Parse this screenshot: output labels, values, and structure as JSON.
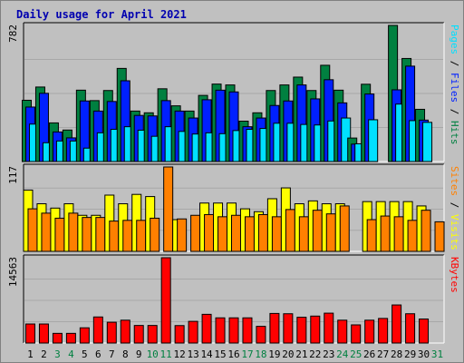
{
  "chart_data": {
    "type": "bar",
    "title": "Daily usage for April 2021",
    "days": [
      "1",
      "2",
      "3",
      "4",
      "5",
      "6",
      "7",
      "8",
      "9",
      "10",
      "11",
      "12",
      "13",
      "14",
      "15",
      "16",
      "17",
      "18",
      "19",
      "20",
      "21",
      "22",
      "23",
      "24",
      "25",
      "26",
      "27",
      "28",
      "29",
      "30",
      "31"
    ],
    "weekend_days": [
      "3",
      "4",
      "10",
      "11",
      "17",
      "18",
      "24",
      "25",
      "31"
    ],
    "colors": {
      "hits": "#008040",
      "files": "#0020ff",
      "pages": "#00e0ff",
      "visits": "#ffff00",
      "sites": "#ff8000",
      "kbytes": "#ff0000",
      "weekday_label": "#000000",
      "weekend_label": "#008040",
      "title": "#0000b0",
      "plot_bg": "#c0c0c0",
      "grid": "#a8a8a8"
    },
    "panels": [
      {
        "name": "hits-files-pages",
        "ymax": 782,
        "ymax_label": "782",
        "right_label": [
          {
            "text": "Pages",
            "color": "#00e0ff"
          },
          {
            "text": " / ",
            "color": "#000000"
          },
          {
            "text": "Files",
            "color": "#0020ff"
          },
          {
            "text": " / ",
            "color": "#000000"
          },
          {
            "text": "Hits",
            "color": "#008040"
          }
        ],
        "series": [
          {
            "name": "Hits",
            "color": "#008040",
            "values": [
              352,
              428,
              222,
              181,
              410,
              350,
              408,
              535,
              290,
              280,
              418,
              320,
              290,
              380,
              445,
              440,
              232,
              280,
              408,
              440,
              485,
              408,
              553,
              410,
              135,
              444,
              0,
              782,
              592,
              300,
              0
            ]
          },
          {
            "name": "Files",
            "color": "#0020ff",
            "values": [
              313,
              392,
              170,
              136,
              348,
              290,
              345,
              464,
              265,
              262,
              350,
              290,
              250,
              355,
              410,
              400,
              200,
              250,
              322,
              348,
              440,
              360,
              470,
              337,
              100,
              388,
              0,
              412,
              548,
              238,
              0
            ]
          },
          {
            "name": "Pages",
            "color": "#00e0ff",
            "values": [
              215,
              108,
              118,
              118,
              77,
              165,
              185,
              200,
              180,
              145,
              200,
              173,
              158,
              165,
              160,
              178,
              185,
              190,
              220,
              220,
              213,
              210,
              233,
              250,
              102,
              240,
              0,
              330,
              235,
              225,
              0
            ]
          }
        ]
      },
      {
        "name": "visits-sites",
        "ymax": 117,
        "ymax_label": "117",
        "right_label": [
          {
            "text": "Sites",
            "color": "#ff8000"
          },
          {
            "text": " / ",
            "color": "#000000"
          },
          {
            "text": "Visits",
            "color": "#ffff00"
          }
        ],
        "series": [
          {
            "name": "Visits",
            "color": "#ffff00",
            "values": [
              85,
              66,
              60,
              66,
              50,
              50,
              78,
              66,
              79,
              76,
              0,
              44,
              0,
              67,
              67,
              67,
              59,
              55,
              73,
              88,
              66,
              70,
              66,
              66,
              0,
              69,
              69,
              69,
              69,
              63,
              0
            ]
          },
          {
            "name": "Sites",
            "color": "#ff8000",
            "values": [
              59,
              53,
              46,
              53,
              47,
              47,
              42,
              43,
              43,
              46,
              117,
              45,
              50,
              51,
              48,
              50,
              48,
              51,
              48,
              58,
              48,
              57,
              52,
              63,
              0,
              44,
              49,
              48,
              43,
              57,
              41
            ]
          }
        ]
      },
      {
        "name": "kbytes",
        "ymax": 14563,
        "ymax_label": "14563",
        "right_label": [
          {
            "text": "KBytes",
            "color": "#ff0000"
          }
        ],
        "series": [
          {
            "name": "KBytes",
            "color": "#ff0000",
            "values": [
              3250,
              3250,
              1650,
              1650,
              2600,
              4450,
              3550,
              3900,
              3000,
              3000,
              14563,
              2980,
              3700,
              4900,
              4300,
              4300,
              4300,
              2850,
              5050,
              5000,
              4400,
              4600,
              5100,
              3900,
              3100,
              3900,
              4200,
              6500,
              5000,
              4100,
              0
            ]
          }
        ]
      }
    ]
  }
}
